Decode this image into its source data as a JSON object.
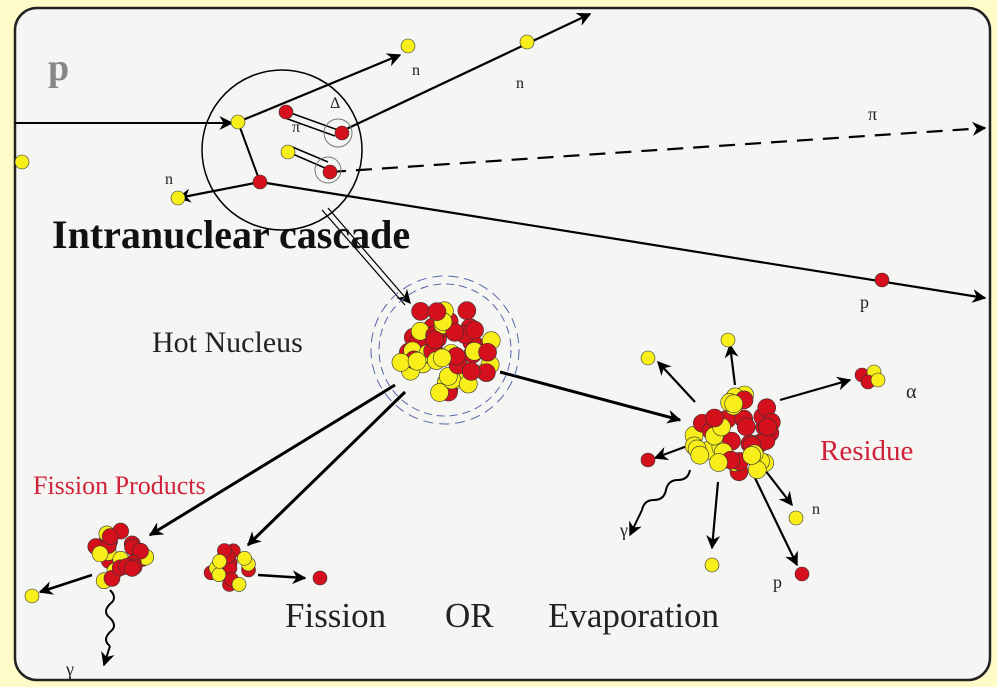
{
  "labels": [
    "p",
    "n",
    "n",
    "Δ",
    "π",
    "π",
    "n",
    "Intranuclear cascade",
    "p",
    "Hot Nucleus",
    "α",
    "Fission Products",
    "Residue",
    "n",
    "γ",
    "p",
    "γ",
    "Fission",
    "OR",
    "Evaporation"
  ]
}
